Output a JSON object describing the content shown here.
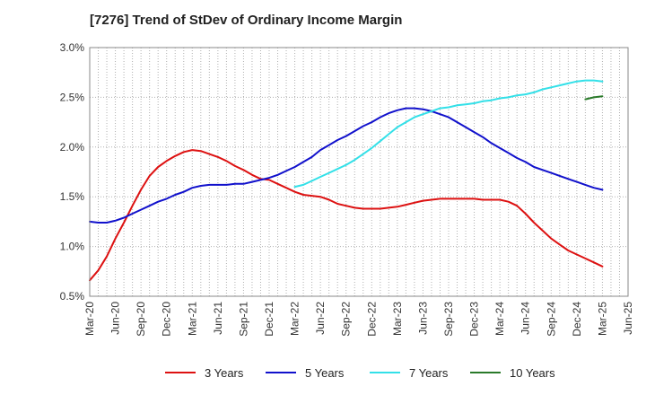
{
  "title": "[7276]  Trend of StDev of Ordinary Income Margin",
  "chart_data": {
    "type": "line",
    "title": "[7276]  Trend of StDev of Ordinary Income Margin",
    "xlabel": "",
    "ylabel": "",
    "x_ticks": [
      "Mar-20",
      "Jun-20",
      "Sep-20",
      "Dec-20",
      "Mar-21",
      "Jun-21",
      "Sep-21",
      "Dec-21",
      "Mar-22",
      "Jun-22",
      "Sep-22",
      "Dec-22",
      "Mar-23",
      "Jun-23",
      "Sep-23",
      "Dec-23",
      "Mar-24",
      "Jun-24",
      "Sep-24",
      "Dec-24",
      "Mar-25",
      "Jun-25"
    ],
    "y_ticks": [
      "0.5%",
      "1.0%",
      "1.5%",
      "2.0%",
      "2.5%",
      "3.0%"
    ],
    "ylim": [
      0.5,
      3.0
    ],
    "y_unit": "%",
    "grid": true,
    "legend_position": "bottom",
    "series": [
      {
        "name": "3 Years",
        "color": "#dd1111",
        "x": [
          "Mar-20",
          "Apr-20",
          "May-20",
          "Jun-20",
          "Jul-20",
          "Aug-20",
          "Sep-20",
          "Oct-20",
          "Nov-20",
          "Dec-20",
          "Jan-21",
          "Feb-21",
          "Mar-21",
          "Apr-21",
          "May-21",
          "Jun-21",
          "Jul-21",
          "Aug-21",
          "Sep-21",
          "Oct-21",
          "Nov-21",
          "Dec-21",
          "Jan-22",
          "Feb-22",
          "Mar-22",
          "Apr-22",
          "May-22",
          "Jun-22",
          "Jul-22",
          "Aug-22",
          "Sep-22",
          "Oct-22",
          "Nov-22",
          "Dec-22",
          "Jan-23",
          "Feb-23",
          "Mar-23",
          "Apr-23",
          "May-23",
          "Jun-23",
          "Jul-23",
          "Aug-23",
          "Sep-23",
          "Oct-23",
          "Nov-23",
          "Dec-23",
          "Jan-24",
          "Feb-24",
          "Mar-24",
          "Apr-24",
          "May-24",
          "Jun-24",
          "Jul-24",
          "Aug-24",
          "Sep-24",
          "Oct-24",
          "Nov-24",
          "Dec-24",
          "Jan-25",
          "Feb-25",
          "Mar-25"
        ],
        "values": [
          0.66,
          0.76,
          0.9,
          1.08,
          1.24,
          1.41,
          1.57,
          1.71,
          1.8,
          1.86,
          1.91,
          1.95,
          1.97,
          1.96,
          1.93,
          1.9,
          1.86,
          1.81,
          1.77,
          1.72,
          1.68,
          1.67,
          1.63,
          1.59,
          1.55,
          1.52,
          1.51,
          1.5,
          1.47,
          1.43,
          1.41,
          1.39,
          1.38,
          1.38,
          1.38,
          1.39,
          1.4,
          1.42,
          1.44,
          1.46,
          1.47,
          1.48,
          1.48,
          1.48,
          1.48,
          1.48,
          1.47,
          1.47,
          1.47,
          1.45,
          1.41,
          1.33,
          1.24,
          1.16,
          1.08,
          1.02,
          0.96,
          0.92,
          0.88,
          0.84,
          0.8
        ]
      },
      {
        "name": "5 Years",
        "color": "#1111cc",
        "x": [
          "Mar-20",
          "Apr-20",
          "May-20",
          "Jun-20",
          "Jul-20",
          "Aug-20",
          "Sep-20",
          "Oct-20",
          "Nov-20",
          "Dec-20",
          "Jan-21",
          "Feb-21",
          "Mar-21",
          "Apr-21",
          "May-21",
          "Jun-21",
          "Jul-21",
          "Aug-21",
          "Sep-21",
          "Oct-21",
          "Nov-21",
          "Dec-21",
          "Jan-22",
          "Feb-22",
          "Mar-22",
          "Apr-22",
          "May-22",
          "Jun-22",
          "Jul-22",
          "Aug-22",
          "Sep-22",
          "Oct-22",
          "Nov-22",
          "Dec-22",
          "Jan-23",
          "Feb-23",
          "Mar-23",
          "Apr-23",
          "May-23",
          "Jun-23",
          "Jul-23",
          "Aug-23",
          "Sep-23",
          "Oct-23",
          "Nov-23",
          "Dec-23",
          "Jan-24",
          "Feb-24",
          "Mar-24",
          "Apr-24",
          "May-24",
          "Jun-24",
          "Jul-24",
          "Aug-24",
          "Sep-24",
          "Oct-24",
          "Nov-24",
          "Dec-24",
          "Jan-25",
          "Feb-25",
          "Mar-25"
        ],
        "values": [
          1.25,
          1.24,
          1.24,
          1.26,
          1.29,
          1.33,
          1.37,
          1.41,
          1.45,
          1.48,
          1.52,
          1.55,
          1.59,
          1.61,
          1.62,
          1.62,
          1.62,
          1.63,
          1.63,
          1.65,
          1.67,
          1.69,
          1.72,
          1.76,
          1.8,
          1.85,
          1.9,
          1.97,
          2.02,
          2.07,
          2.11,
          2.16,
          2.21,
          2.25,
          2.3,
          2.34,
          2.37,
          2.39,
          2.39,
          2.38,
          2.36,
          2.33,
          2.3,
          2.25,
          2.2,
          2.15,
          2.1,
          2.04,
          1.99,
          1.94,
          1.89,
          1.85,
          1.8,
          1.77,
          1.74,
          1.71,
          1.68,
          1.65,
          1.62,
          1.59,
          1.57
        ]
      },
      {
        "name": "7 Years",
        "color": "#33e0e8",
        "x": [
          "Mar-22",
          "Apr-22",
          "May-22",
          "Jun-22",
          "Jul-22",
          "Aug-22",
          "Sep-22",
          "Oct-22",
          "Nov-22",
          "Dec-22",
          "Jan-23",
          "Feb-23",
          "Mar-23",
          "Apr-23",
          "May-23",
          "Jun-23",
          "Jul-23",
          "Aug-23",
          "Sep-23",
          "Oct-23",
          "Nov-23",
          "Dec-23",
          "Jan-24",
          "Feb-24",
          "Mar-24",
          "Apr-24",
          "May-24",
          "Jun-24",
          "Jul-24",
          "Aug-24",
          "Sep-24",
          "Oct-24",
          "Nov-24",
          "Dec-24",
          "Jan-25",
          "Feb-25",
          "Mar-25"
        ],
        "values": [
          1.6,
          1.62,
          1.66,
          1.7,
          1.74,
          1.78,
          1.82,
          1.87,
          1.93,
          1.99,
          2.06,
          2.13,
          2.2,
          2.25,
          2.3,
          2.33,
          2.36,
          2.39,
          2.4,
          2.42,
          2.43,
          2.44,
          2.46,
          2.47,
          2.49,
          2.5,
          2.52,
          2.53,
          2.55,
          2.58,
          2.6,
          2.62,
          2.64,
          2.66,
          2.67,
          2.67,
          2.66
        ]
      },
      {
        "name": "10 Years",
        "color": "#2a7a2a",
        "x": [
          "Jan-25",
          "Feb-25",
          "Mar-25"
        ],
        "values": [
          2.48,
          2.5,
          2.51
        ]
      }
    ]
  }
}
